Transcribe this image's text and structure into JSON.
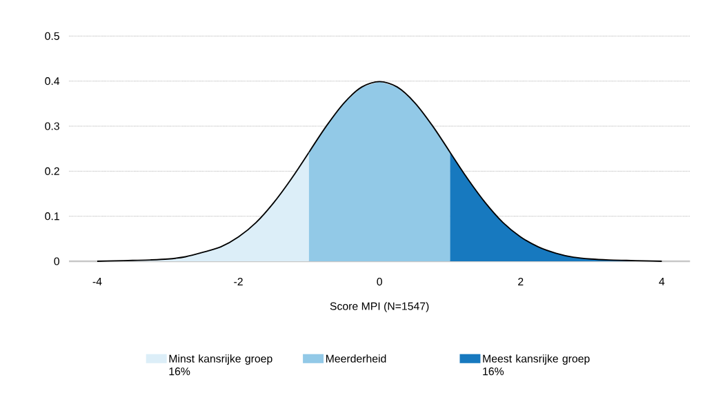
{
  "chart_data": {
    "type": "area",
    "xlabel": "Score MPI (N=1547)",
    "xlim": [
      -4.4,
      4.4
    ],
    "ylim": [
      0,
      0.5
    ],
    "xticks": [
      -4,
      -2,
      0,
      2,
      4
    ],
    "yticks": [
      0,
      0.1,
      0.2,
      0.3,
      0.4,
      0.5
    ],
    "grid": "y",
    "legend": "bottom",
    "series": [
      {
        "name": "Minst kansrijke groep 16%",
        "color": "#dceef8",
        "x": [
          -4,
          -3.75,
          -3.5,
          -3.25,
          -3,
          -2.75,
          -2.5,
          -2.25,
          -2,
          -1.75,
          -1.5,
          -1.25,
          -1
        ],
        "values": [
          0.0,
          0.001,
          0.002,
          0.003,
          0.005,
          0.01,
          0.02,
          0.032,
          0.054,
          0.086,
          0.13,
          0.183,
          0.242
        ]
      },
      {
        "name": "Meerderheid",
        "color": "#92c9e7",
        "x": [
          -1,
          -0.75,
          -0.5,
          -0.25,
          0,
          0.25,
          0.5,
          0.75,
          1
        ],
        "values": [
          0.242,
          0.301,
          0.352,
          0.387,
          0.399,
          0.387,
          0.352,
          0.301,
          0.242
        ]
      },
      {
        "name": "Meest kansrijke groep 16%",
        "color": "#1779bf",
        "x": [
          1,
          1.25,
          1.5,
          1.75,
          2,
          2.25,
          2.5,
          2.75,
          3,
          3.25,
          3.5,
          3.75,
          4
        ],
        "values": [
          0.242,
          0.183,
          0.13,
          0.086,
          0.054,
          0.032,
          0.018,
          0.009,
          0.005,
          0.003,
          0.002,
          0.001,
          0.0
        ]
      }
    ]
  }
}
